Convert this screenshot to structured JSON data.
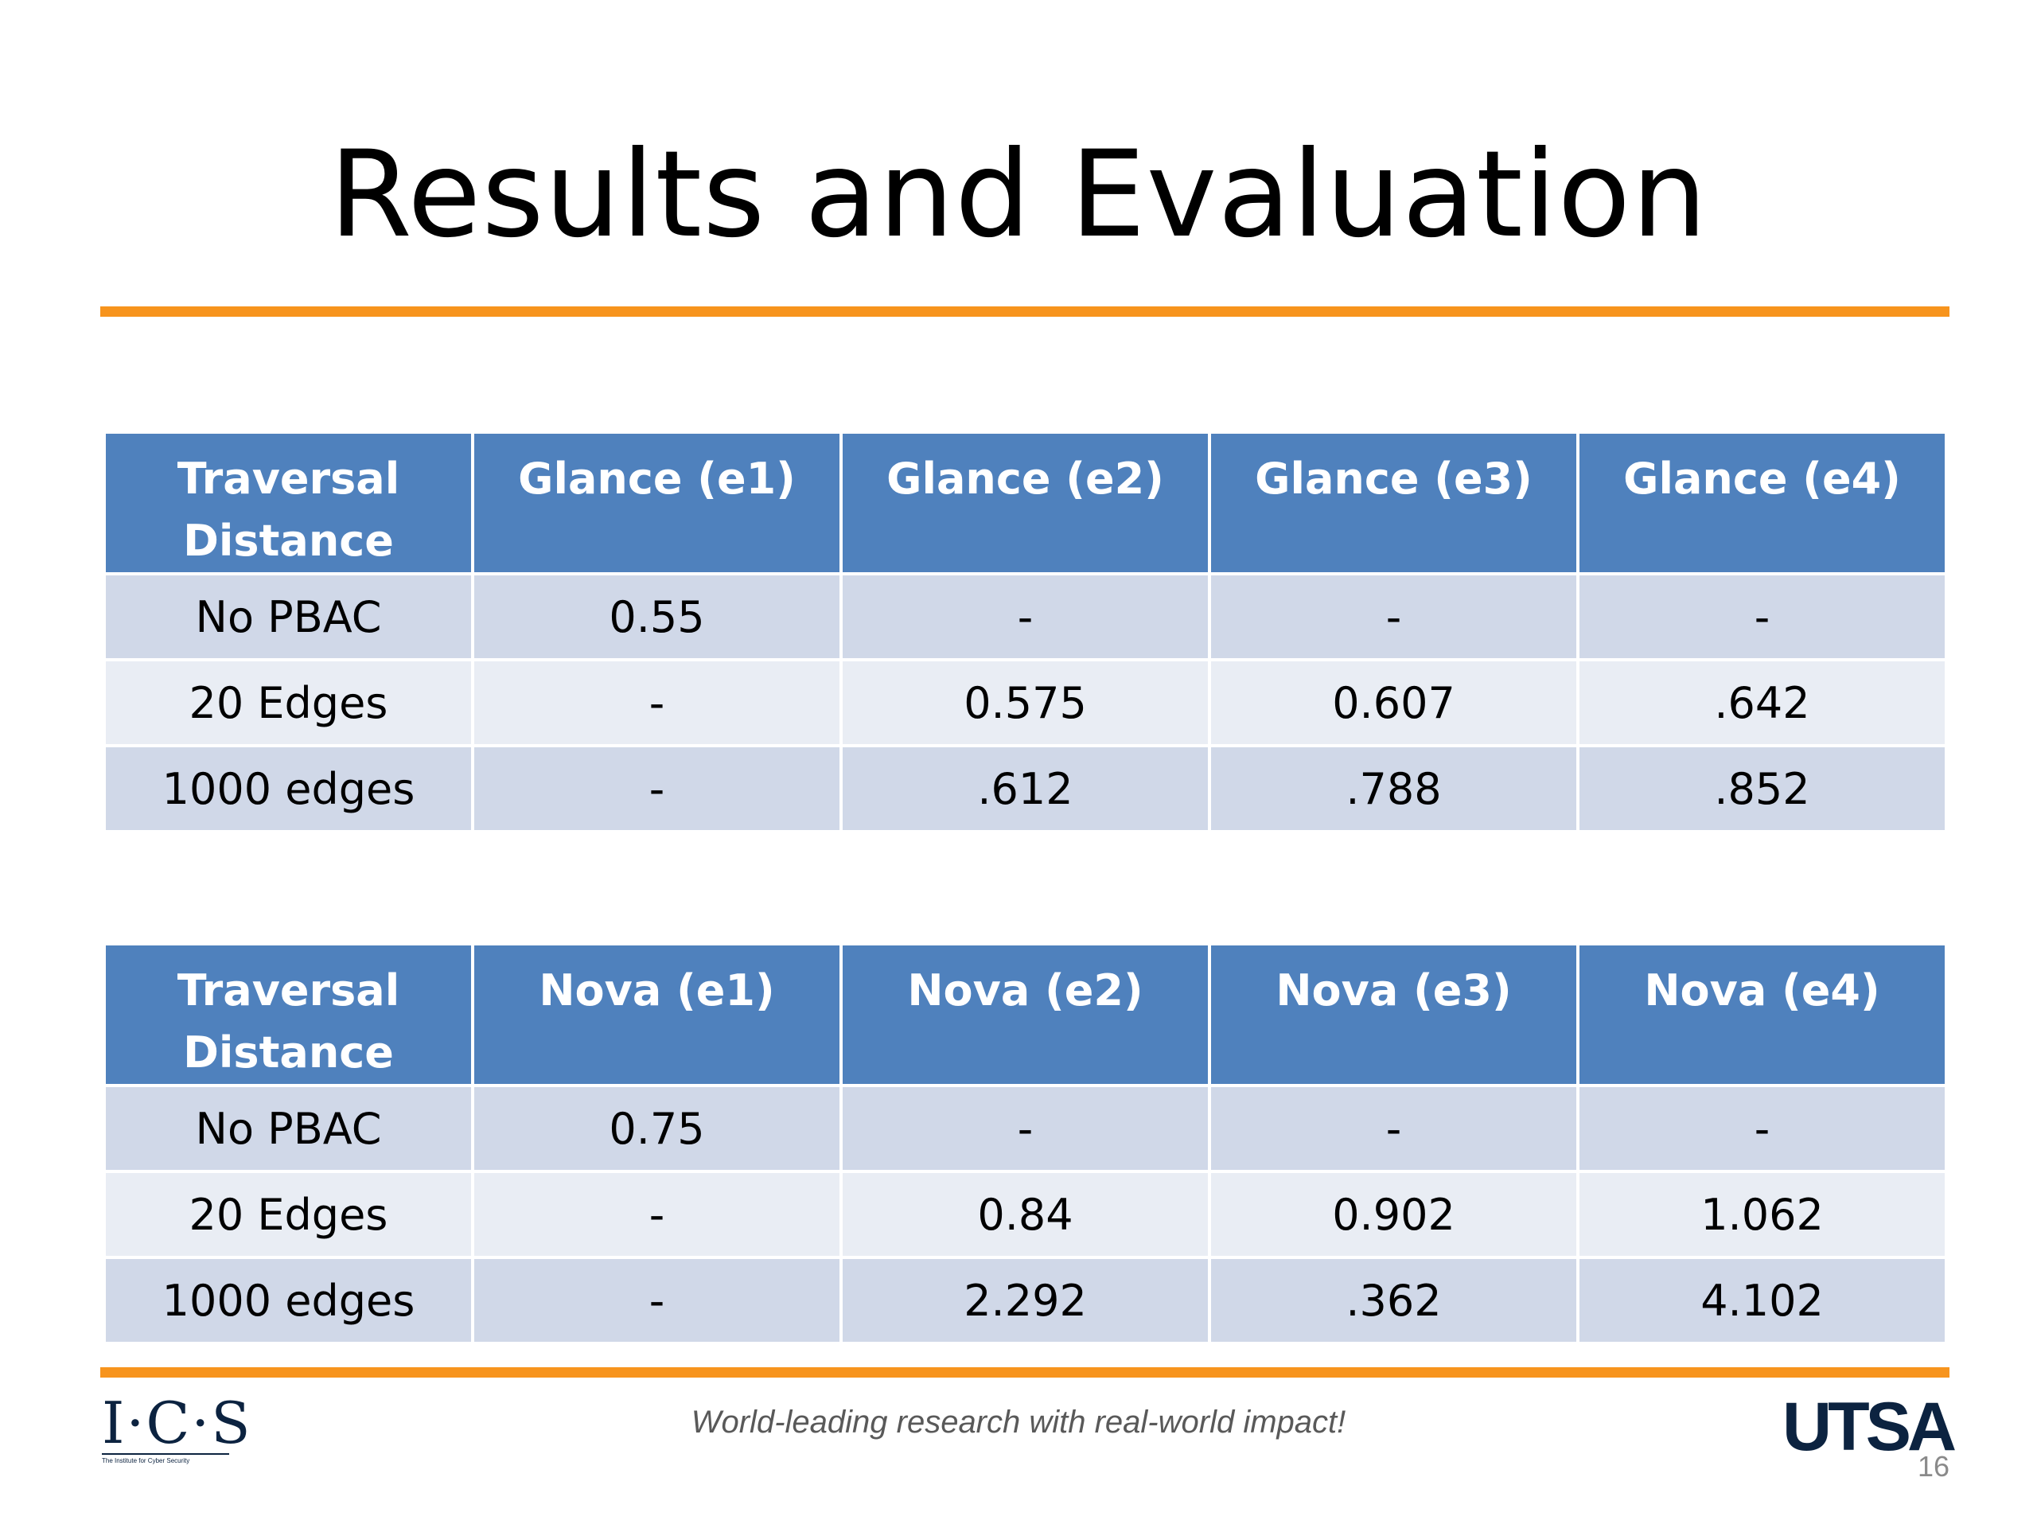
{
  "slide": {
    "title": "Results and Evaluation",
    "footer_tagline": "World-leading research with real-world impact!",
    "page_number": "16",
    "logos": {
      "left": {
        "mark": "I·C·S",
        "subtitle": "The Institute for Cyber Security"
      },
      "right": {
        "mark": "UTSA"
      }
    },
    "colors": {
      "accent_rule": "#f7941d",
      "header_fill": "#4f81bd",
      "row_dark": "#d0d8e8",
      "row_light": "#e9edf4",
      "logo_navy": "#0c2340"
    }
  },
  "glance_table": {
    "headers": [
      "Traversal Distance",
      "Glance (e1)",
      "Glance (e2)",
      "Glance (e3)",
      "Glance (e4)"
    ],
    "rows": [
      [
        "No PBAC",
        "0.55",
        "-",
        "-",
        "-"
      ],
      [
        "20 Edges",
        "-",
        "0.575",
        "0.607",
        ".642"
      ],
      [
        "1000 edges",
        "-",
        ".612",
        ".788",
        ".852"
      ]
    ]
  },
  "nova_table": {
    "headers": [
      "Traversal Distance",
      "Nova (e1)",
      "Nova (e2)",
      "Nova (e3)",
      "Nova (e4)"
    ],
    "rows": [
      [
        "No PBAC",
        "0.75",
        "-",
        "-",
        "-"
      ],
      [
        "20 Edges",
        "-",
        "0.84",
        "0.902",
        "1.062"
      ],
      [
        "1000 edges",
        "-",
        "2.292",
        ".362",
        "4.102"
      ]
    ]
  }
}
